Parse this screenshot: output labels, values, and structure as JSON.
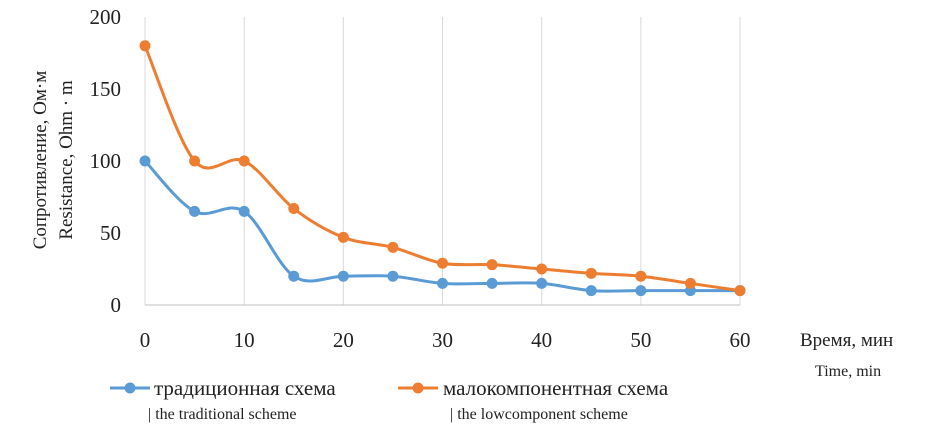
{
  "chart_data": {
    "type": "line",
    "x": [
      0,
      5,
      10,
      15,
      20,
      25,
      30,
      35,
      40,
      45,
      50,
      55,
      60
    ],
    "xlim": [
      0,
      60
    ],
    "ylim": [
      0,
      200
    ],
    "xticks": [
      "0",
      "10",
      "20",
      "30",
      "40",
      "50",
      "60"
    ],
    "yticks": [
      "0",
      "50",
      "100",
      "150",
      "200"
    ],
    "xlabel": "Время, мин",
    "xlabel_sub": "Time, min",
    "ylabel": "Сопротивление, Ом·м",
    "ylabel_sub": "Resistance, Ohm · m",
    "grid": "vertical",
    "legend_position": "bottom",
    "series": [
      {
        "name": "традиционная схема",
        "name_sub": "| the traditional scheme",
        "color": "#5B9BD5",
        "values": [
          100,
          65,
          65,
          20,
          20,
          20,
          15,
          15,
          15,
          10,
          10,
          10,
          10
        ]
      },
      {
        "name": "малокомпонентная схема",
        "name_sub": "| the lowcomponent scheme",
        "color": "#ED7D31",
        "values": [
          180,
          100,
          100,
          67,
          47,
          40,
          29,
          28,
          25,
          22,
          20,
          15,
          10
        ]
      }
    ]
  }
}
